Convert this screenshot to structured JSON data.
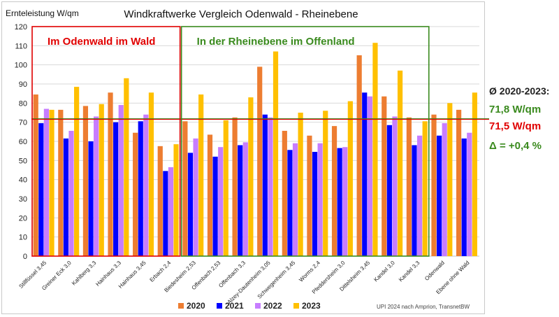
{
  "chart_data": {
    "type": "bar",
    "title": "Windkraftwerke Vergleich Odenwald - Rheinebene",
    "ylabel": "Ernteleistung W/qm",
    "xlabel": "",
    "ylim": [
      0,
      120
    ],
    "yticks": [
      0,
      10,
      20,
      30,
      40,
      50,
      60,
      70,
      80,
      90,
      100,
      110,
      120
    ],
    "grid": true,
    "legend_position": "bottom",
    "categories": [
      "Stillfüssel 3,45",
      "Greiner Eck 3,0",
      "Kahlberg 3,3",
      "Hainhaus 3,3",
      "Hainhaus 3,45",
      "Erbach 2,4",
      "Biedesheim 2,53",
      "Offenbach 2,53",
      "Offenbach 3,3",
      "Alzey-Dautenheim 3,05",
      "Schwegenheim 3,45",
      "Worms 2,4",
      "Pfeddersheim 3,0",
      "Dittelsheim 3,45",
      "Kandel 3,0",
      "Kandel 3,3",
      "Odenwald",
      "Ebene ohne Wald"
    ],
    "series": [
      {
        "name": "2020",
        "color": "#ed7d31",
        "values": [
          84.5,
          76.5,
          78.5,
          85.5,
          64.5,
          57.5,
          70.5,
          63.5,
          72.5,
          99,
          65.5,
          63,
          68,
          105,
          83.5,
          72.5,
          74,
          76.5
        ]
      },
      {
        "name": "2021",
        "color": "#0000ff",
        "values": [
          69.5,
          61.5,
          60,
          70,
          70.5,
          44.5,
          54,
          52,
          58,
          74,
          55.5,
          54.5,
          56.5,
          85.5,
          68.5,
          58,
          63,
          61.5
        ]
      },
      {
        "name": "2022",
        "color": "#c77dff",
        "values": [
          77,
          65.5,
          73,
          79,
          74,
          46.5,
          61.5,
          57,
          59.5,
          72.5,
          59,
          59,
          57,
          83.5,
          73,
          63,
          69.5,
          64.5
        ]
      },
      {
        "name": "2023",
        "color": "#ffc000",
        "values": [
          76.5,
          88.5,
          79.5,
          93,
          85.5,
          58.5,
          84.5,
          71,
          83,
          107,
          75,
          76,
          81,
          111.5,
          97,
          70.5,
          80,
          85.5
        ]
      }
    ],
    "reference_lines": [
      {
        "value": 71.8,
        "color": "#3a8a1e"
      },
      {
        "value": 71.5,
        "color": "#e00000"
      }
    ],
    "groups": [
      {
        "label": "Im Odenwald im Wald",
        "color": "#e00000",
        "from": 0,
        "to": 5
      },
      {
        "label": "In der Rheinebene im Offenland",
        "color": "#3a8a1e",
        "from": 6,
        "to": 15
      }
    ],
    "source_note": "UPI 2024 nach Amprion, TransnetBW"
  },
  "side": {
    "avg_label": "Ø 2020-2023:",
    "green_value": "71,8 W/qm",
    "red_value": "71,5 W/qm",
    "delta": "Δ = +0,4 %"
  }
}
